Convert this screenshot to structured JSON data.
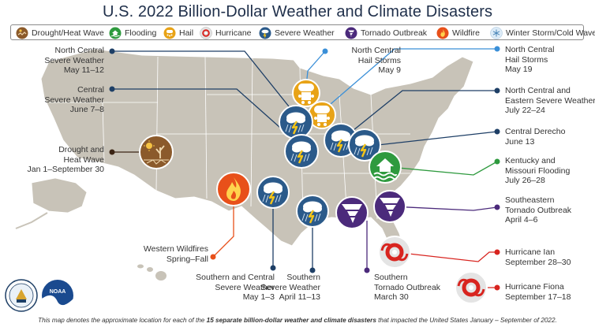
{
  "title": "U.S. 2022 Billion-Dollar Weather and Climate Disasters",
  "legend": [
    {
      "label": "Drought/Heat Wave",
      "icon": "drought-icon",
      "color": "#8b5a2b"
    },
    {
      "label": "Flooding",
      "icon": "flood-icon",
      "color": "#2e9a3e"
    },
    {
      "label": "Hail",
      "icon": "hail-icon",
      "color": "#e8a317"
    },
    {
      "label": "Hurricane",
      "icon": "hurricane-icon",
      "color": "#d9d9d9"
    },
    {
      "label": "Severe Weather",
      "icon": "severe-weather-icon",
      "color": "#2b5a8a"
    },
    {
      "label": "Tornado Outbreak",
      "icon": "tornado-icon",
      "color": "#4b2a7b"
    },
    {
      "label": "Wildfire",
      "icon": "wildfire-icon",
      "color": "#e8501a"
    },
    {
      "label": "Winter Storm/Cold Wave",
      "icon": "winter-storm-icon",
      "color": "#cfe3f2"
    }
  ],
  "events": [
    {
      "lines": [
        "North Central",
        "Severe Weather",
        "May 11–12"
      ],
      "type": "severe-weather"
    },
    {
      "lines": [
        "Central",
        "Severe Weather",
        "June 7–8"
      ],
      "type": "severe-weather"
    },
    {
      "lines": [
        "Drought and",
        "Heat Wave",
        "Jan 1–September 30"
      ],
      "type": "drought"
    },
    {
      "lines": [
        "North Central",
        "Hail Storms",
        "May 9"
      ],
      "type": "hail"
    },
    {
      "lines": [
        "North Central",
        "Hail Storms",
        "May 19"
      ],
      "type": "hail"
    },
    {
      "lines": [
        "North Central and",
        "Eastern Severe Weather",
        "July 22–24"
      ],
      "type": "severe-weather"
    },
    {
      "lines": [
        "Central Derecho",
        "June 13"
      ],
      "type": "severe-weather"
    },
    {
      "lines": [
        "Kentucky and",
        "Missouri Flooding",
        "July 26–28"
      ],
      "type": "flooding"
    },
    {
      "lines": [
        "Southeastern",
        "Tornado Outbreak",
        "April 4–6"
      ],
      "type": "tornado"
    },
    {
      "lines": [
        "Hurricane Ian",
        "September 28–30"
      ],
      "type": "hurricane"
    },
    {
      "lines": [
        "Hurricane Fiona",
        "September 17–18"
      ],
      "type": "hurricane"
    },
    {
      "lines": [
        "Western Wildfires",
        "Spring–Fall"
      ],
      "type": "wildfire"
    },
    {
      "lines": [
        "Southern and Central",
        "Severe Weather",
        "May 1–3"
      ],
      "type": "severe-weather"
    },
    {
      "lines": [
        "Southern",
        "Severe Weather",
        "April 11–13"
      ],
      "type": "severe-weather"
    },
    {
      "lines": [
        "Southern",
        "Tornado Outbreak",
        "March 30"
      ],
      "type": "tornado"
    }
  ],
  "footer": {
    "pre": "This map denotes the approximate location for each of the ",
    "bold": "15 separate billion-dollar weather and climate disasters",
    "post": " that impacted the United States January – September of 2022."
  },
  "logos": [
    {
      "name": "doc-seal-logo",
      "text": "U.S. DEPARTMENT OF COMMERCE"
    },
    {
      "name": "noaa-logo",
      "text": "NOAA"
    }
  ]
}
